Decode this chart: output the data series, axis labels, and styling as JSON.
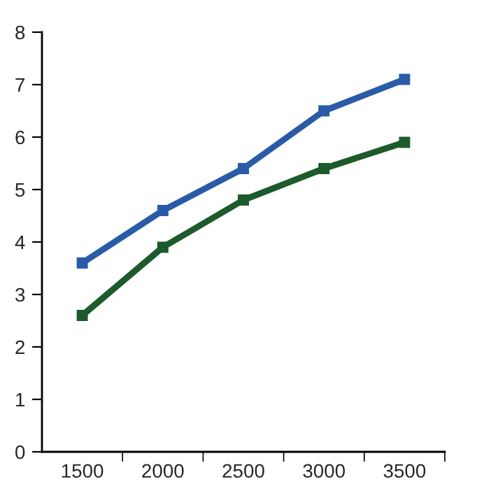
{
  "chart_data": {
    "type": "line",
    "categories": [
      "1500",
      "2000",
      "2500",
      "3000",
      "3500"
    ],
    "series": [
      {
        "color": "#2a5ba8",
        "values": [
          3.6,
          4.6,
          5.4,
          6.5,
          7.1
        ]
      },
      {
        "color": "#1d5a2c",
        "values": [
          2.6,
          3.9,
          4.8,
          5.4,
          5.9
        ]
      }
    ],
    "ylim": [
      0,
      8
    ],
    "yticks": [
      0,
      1,
      2,
      3,
      4,
      5,
      6,
      7,
      8
    ],
    "grid": false,
    "legend": false,
    "marker": "square",
    "line_style": "solid"
  }
}
